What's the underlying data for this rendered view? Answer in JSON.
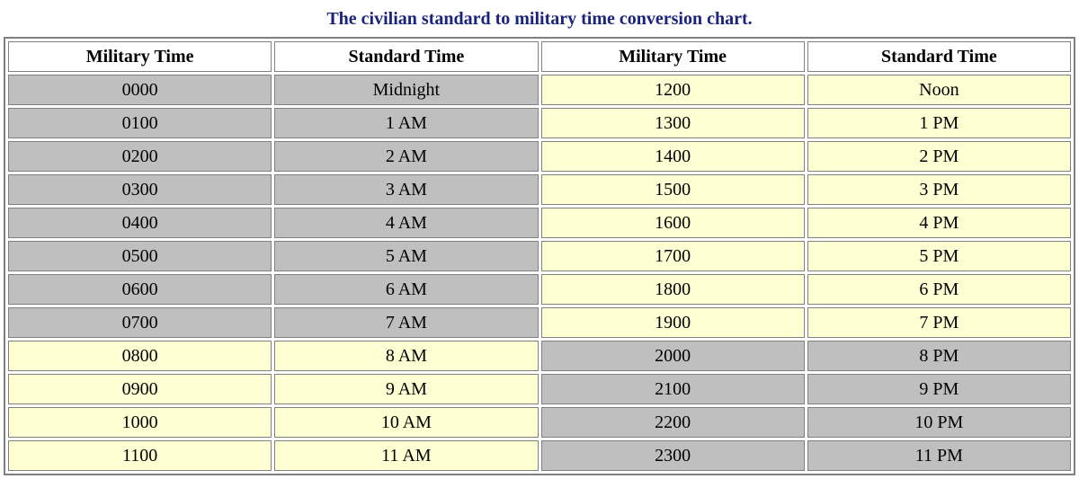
{
  "title": "The civilian standard to military time conversion chart.",
  "title_color": "#1a237e",
  "columns": [
    "Military Time",
    "Standard Time",
    "Military Time",
    "Standard Time"
  ],
  "header_bg": "#ffffff",
  "colors": {
    "gray": "#bfbfbf",
    "yellow": "#feffd2",
    "border": "#808080"
  },
  "rows": [
    {
      "cells": [
        "0000",
        "Midnight",
        "1200",
        "Noon"
      ],
      "bg": [
        "gray",
        "gray",
        "yellow",
        "yellow"
      ]
    },
    {
      "cells": [
        "0100",
        "1 AM",
        "1300",
        "1 PM"
      ],
      "bg": [
        "gray",
        "gray",
        "yellow",
        "yellow"
      ]
    },
    {
      "cells": [
        "0200",
        "2 AM",
        "1400",
        "2 PM"
      ],
      "bg": [
        "gray",
        "gray",
        "yellow",
        "yellow"
      ]
    },
    {
      "cells": [
        "0300",
        "3 AM",
        "1500",
        "3 PM"
      ],
      "bg": [
        "gray",
        "gray",
        "yellow",
        "yellow"
      ]
    },
    {
      "cells": [
        "0400",
        "4 AM",
        "1600",
        "4 PM"
      ],
      "bg": [
        "gray",
        "gray",
        "yellow",
        "yellow"
      ]
    },
    {
      "cells": [
        "0500",
        "5 AM",
        "1700",
        "5 PM"
      ],
      "bg": [
        "gray",
        "gray",
        "yellow",
        "yellow"
      ]
    },
    {
      "cells": [
        "0600",
        "6 AM",
        "1800",
        "6 PM"
      ],
      "bg": [
        "gray",
        "gray",
        "yellow",
        "yellow"
      ]
    },
    {
      "cells": [
        "0700",
        "7 AM",
        "1900",
        "7 PM"
      ],
      "bg": [
        "gray",
        "gray",
        "yellow",
        "yellow"
      ]
    },
    {
      "cells": [
        "0800",
        "8 AM",
        "2000",
        "8 PM"
      ],
      "bg": [
        "yellow",
        "yellow",
        "gray",
        "gray"
      ]
    },
    {
      "cells": [
        "0900",
        "9 AM",
        "2100",
        "9 PM"
      ],
      "bg": [
        "yellow",
        "yellow",
        "gray",
        "gray"
      ]
    },
    {
      "cells": [
        "1000",
        "10 AM",
        "2200",
        "10 PM"
      ],
      "bg": [
        "yellow",
        "yellow",
        "gray",
        "gray"
      ]
    },
    {
      "cells": [
        "1100",
        "11 AM",
        "2300",
        "11 PM"
      ],
      "bg": [
        "yellow",
        "yellow",
        "gray",
        "gray"
      ]
    }
  ]
}
